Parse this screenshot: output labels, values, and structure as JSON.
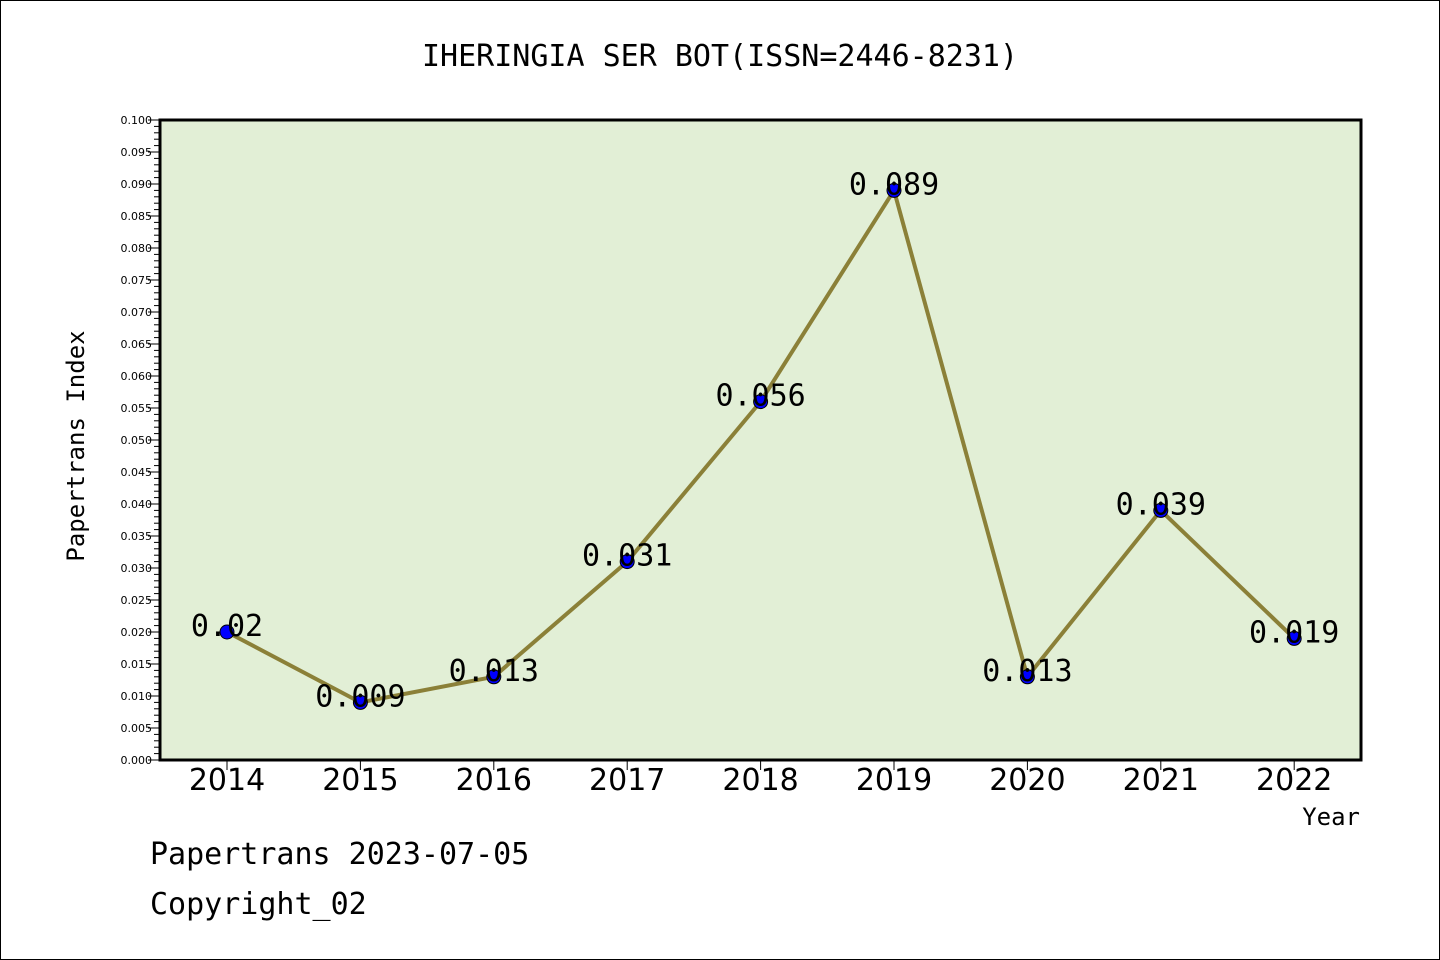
{
  "chart_data": {
    "type": "line",
    "title": "IHERINGIA SER BOT(ISSN=2446-8231)",
    "xlabel": "Year",
    "ylabel": "Papertrans Index",
    "x": [
      "2014",
      "2015",
      "2016",
      "2017",
      "2018",
      "2019",
      "2020",
      "2021",
      "2022"
    ],
    "values": [
      0.02,
      0.009,
      0.013,
      0.031,
      0.056,
      0.089,
      0.013,
      0.039,
      0.019
    ],
    "data_labels": [
      "0.02",
      "0.009",
      "0.013",
      "0.031",
      "0.056",
      "0.089",
      "0.013",
      "0.039",
      "0.019"
    ],
    "ylim": [
      0,
      0.1
    ],
    "y_ticks": [
      "0.000",
      "0.005",
      "0.010",
      "0.015",
      "0.020",
      "0.025",
      "0.030",
      "0.035",
      "0.040",
      "0.045",
      "0.050",
      "0.055",
      "0.060",
      "0.065",
      "0.070",
      "0.075",
      "0.080",
      "0.085",
      "0.090",
      "0.095",
      "0.100"
    ],
    "grid": false,
    "legend": "none",
    "colors": {
      "plot_background": "#e2efd6",
      "line": "#8b8038",
      "marker": "#0000ff"
    }
  },
  "footer": {
    "line1": "Papertrans 2023-07-05",
    "line2": "Copyright_02"
  }
}
